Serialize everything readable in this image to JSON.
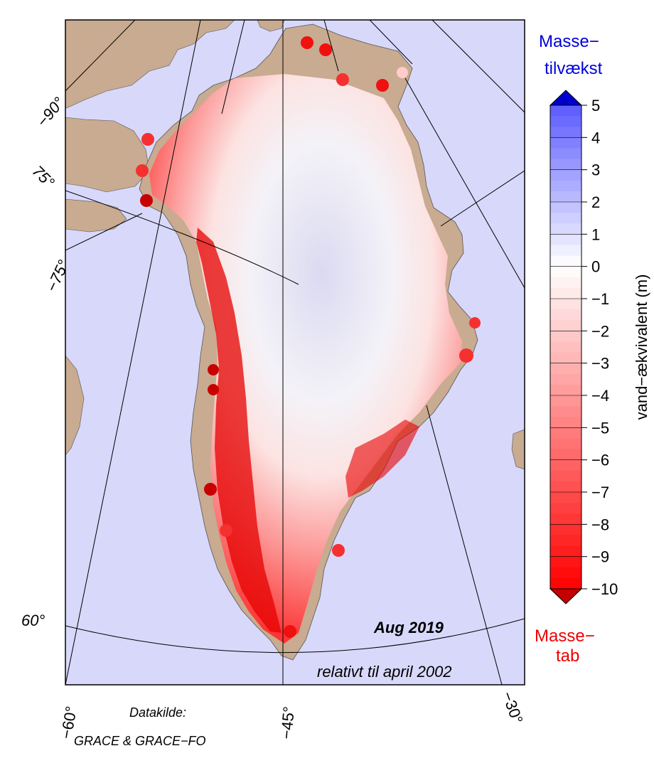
{
  "map": {
    "date_label": "Aug 2019",
    "reference_label": "relativt til april 2002",
    "source_label": "Datakilde:",
    "source_value": "GRACE & GRACE−FO",
    "lon_labels": [
      "−60°",
      "−45°",
      "−30°"
    ],
    "lat_labels": [
      "60°",
      "−75°",
      "75°",
      "−90°"
    ],
    "colors": {
      "ocean": "#d8d8fb",
      "land": "#c8ab90",
      "gain": "#0000cc",
      "loss": "#ff0000",
      "extreme_loss": "#c40000"
    }
  },
  "colorbar": {
    "top_label_line1": "Masse−",
    "top_label_line2": "tilvækst",
    "bottom_label_line1": "Masse−",
    "bottom_label_line2": "tab",
    "axis_title": "vand−ækvivalent (m)",
    "ticks": [
      "5",
      "4",
      "3",
      "2",
      "1",
      "0",
      "−1",
      "−2",
      "−3",
      "−4",
      "−5",
      "−6",
      "−7",
      "−8",
      "−9",
      "−10"
    ],
    "top_label_color": "#0000dd",
    "bottom_label_color": "#ee0000"
  }
}
